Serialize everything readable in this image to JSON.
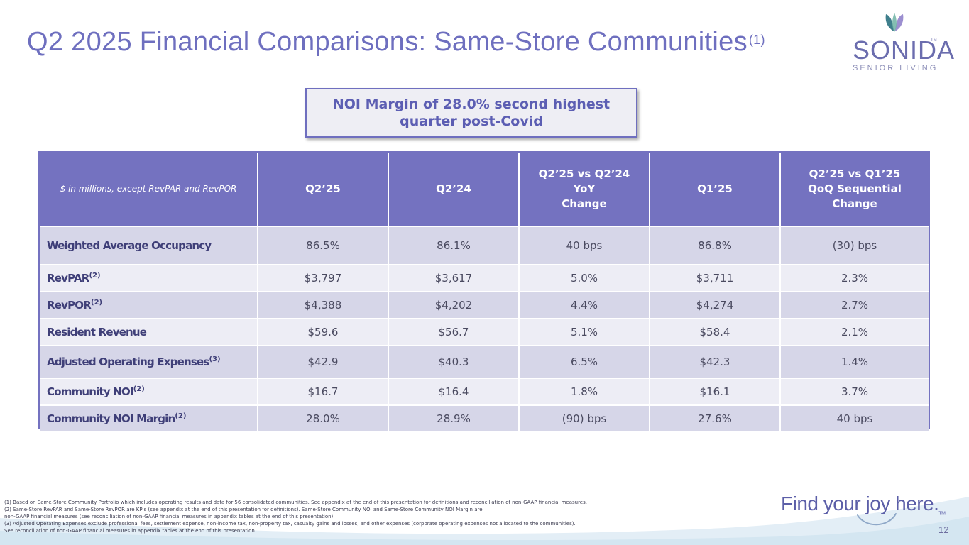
{
  "header": {
    "title": "Q2 2025 Financial Comparisons: Same-Store Communities",
    "title_note": "(1)"
  },
  "logo": {
    "wordmark": "SONIDA",
    "tm": "TM",
    "subtitle": "SENIOR LIVING"
  },
  "callout": {
    "text": "NOI Margin of 28.0% second highest\nquarter post-Covid"
  },
  "table": {
    "units_note": "$ in millions, except RevPAR and RevPOR",
    "columns": [
      "Q2’25",
      "Q2’24",
      "Q2’25 vs Q2’24\nYoY\nChange",
      "Q1’25",
      "Q2’25 vs Q1’25\nQoQ Sequential\nChange"
    ],
    "rows": [
      {
        "label": "Weighted Average Occupancy",
        "note": "",
        "values": [
          "86.5%",
          "86.1%",
          "40 bps",
          "86.8%",
          "(30) bps"
        ]
      },
      {
        "label": "RevPAR",
        "note": "(2)",
        "values": [
          "$3,797",
          "$3,617",
          "5.0%",
          "$3,711",
          "2.3%"
        ]
      },
      {
        "label": "RevPOR",
        "note": "(2)",
        "values": [
          "$4,388",
          "$4,202",
          "4.4%",
          "$4,274",
          "2.7%"
        ]
      },
      {
        "label": "Resident Revenue",
        "note": "",
        "values": [
          "$59.6",
          "$56.7",
          "5.1%",
          "$58.4",
          "2.1%"
        ]
      },
      {
        "label": "Adjusted Operating Expenses",
        "note": "(3)",
        "values": [
          "$42.9",
          "$40.3",
          "6.5%",
          "$42.3",
          "1.4%"
        ]
      },
      {
        "label": "Community NOI",
        "note": "(2)",
        "values": [
          "$16.7",
          "$16.4",
          "1.8%",
          "$16.1",
          "3.7%"
        ]
      },
      {
        "label": "Community NOI Margin",
        "note": "(2)",
        "values": [
          "28.0%",
          "28.9%",
          "(90) bps",
          "27.6%",
          "40 bps"
        ]
      }
    ]
  },
  "footnotes": [
    "(1) Based on Same-Store Community Portfolio which includes operating results and data for 56 consolidated communities. See appendix at the end of this presentation for definitions and reconciliation of non-GAAP financial measures.",
    "(2) Same-Store RevPAR and Same-Store RevPOR are KPIs (see appendix at the end of this presentation for definitions). Same-Store Community NOI and Same-Store Community NOI Margin are",
    "non-GAAP financial measures (see reconciliation of non-GAAP financial measures in appendix tables at the end of this presentation).",
    "(3) Adjusted Operating Expenses exclude professional fees, settlement expense, non-income tax, non-property tax, casualty gains and losses, and other expenses (corporate operating expenses not allocated to the communities).",
    "See reconciliation of non-GAAP financial measures in appendix tables at the end of this presentation."
  ],
  "tagline": "Find your joy here.",
  "tagline_tm": "TM",
  "page_number": "12",
  "colors": {
    "accent": "#7472c0",
    "title": "#6e6fbf",
    "row_dark": "#d6d6e8",
    "row_light": "#ededf5"
  }
}
